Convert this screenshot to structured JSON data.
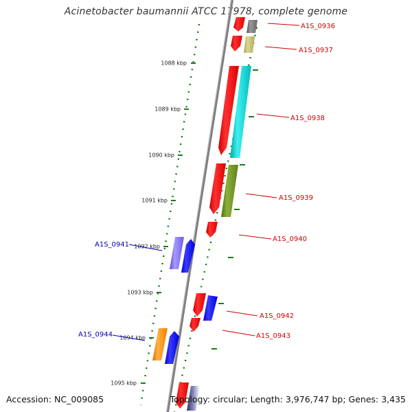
{
  "title": "Acinetobacter baumannii ATCC 17978, complete genome",
  "footer": {
    "accession": "Accession: NC_009085",
    "topology": "Topology: circular; Length: 3,976,747 bp; Genes: 3,435"
  },
  "ticks": [
    "1088 kbp",
    "1089 kbp",
    "1090 kbp",
    "1091 kbp",
    "1092 kbp",
    "1093 kbp",
    "1094 kbp",
    "1095 kbp"
  ],
  "genes_right": [
    "A1S_0936",
    "A1S_0937",
    "A1S_0938",
    "A1S_0939",
    "A1S_0940",
    "A1S_0942",
    "A1S_0943"
  ],
  "genes_left": [
    "A1S_0941",
    "A1S_0944"
  ],
  "colors": {
    "backbone": "#888888",
    "tick_green": "#1a7a1a",
    "label_red": "#cc0000",
    "label_blue": "#0000aa",
    "forward_red": "#ff0000",
    "reverse_blue": "#0000ff",
    "cyan": "#00cccc",
    "olive": "#6b8e23",
    "khaki": "#bdb76b",
    "gray": "#777777",
    "purple": "#7b68ee",
    "orange": "#ff8c00"
  }
}
